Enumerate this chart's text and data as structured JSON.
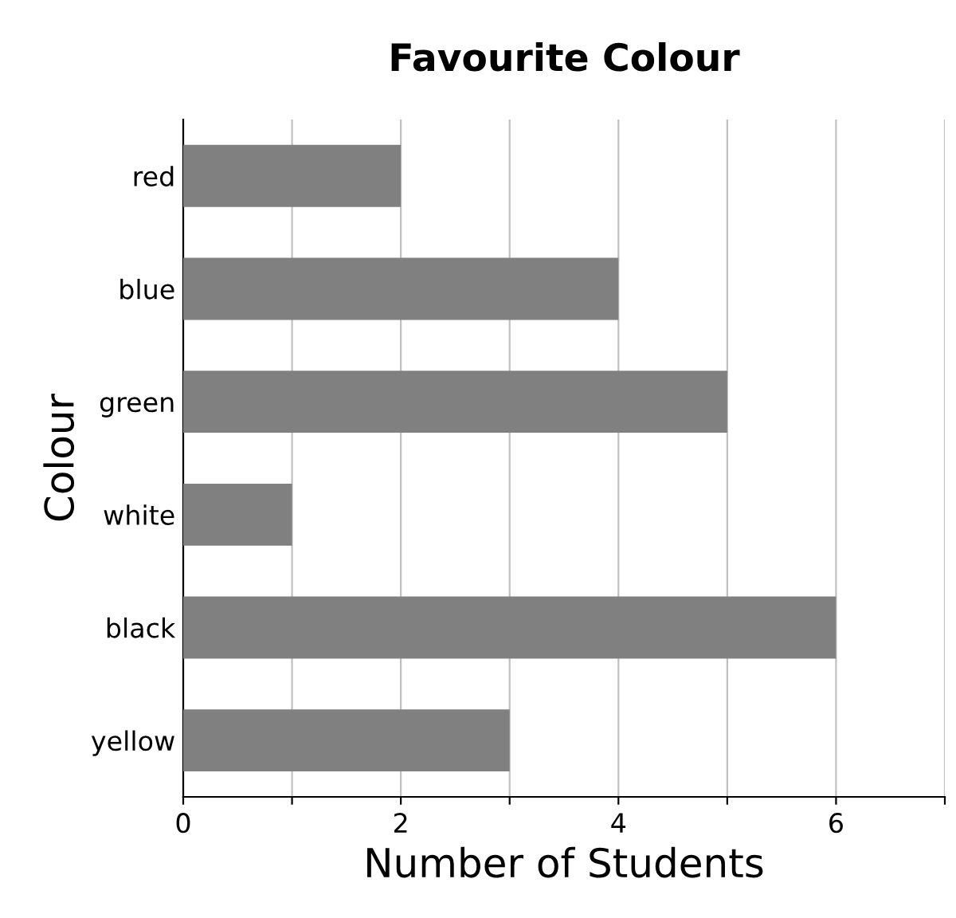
{
  "chart_data": {
    "type": "bar",
    "orientation": "horizontal",
    "title": "Favourite Colour",
    "xlabel": "Number of Students",
    "ylabel": "Colour",
    "categories": [
      "red",
      "blue",
      "green",
      "white",
      "black",
      "yellow"
    ],
    "values": [
      2,
      4,
      5,
      1,
      6,
      3
    ],
    "color": "#808080",
    "xlim": [
      0,
      7
    ],
    "xticks": [
      0,
      {
        "value": 1,
        "label": null
      },
      2,
      {
        "value": 3,
        "label": null
      },
      4,
      {
        "value": 5,
        "label": null
      },
      6,
      {
        "value": 7,
        "label": null
      }
    ],
    "grid": "x"
  }
}
